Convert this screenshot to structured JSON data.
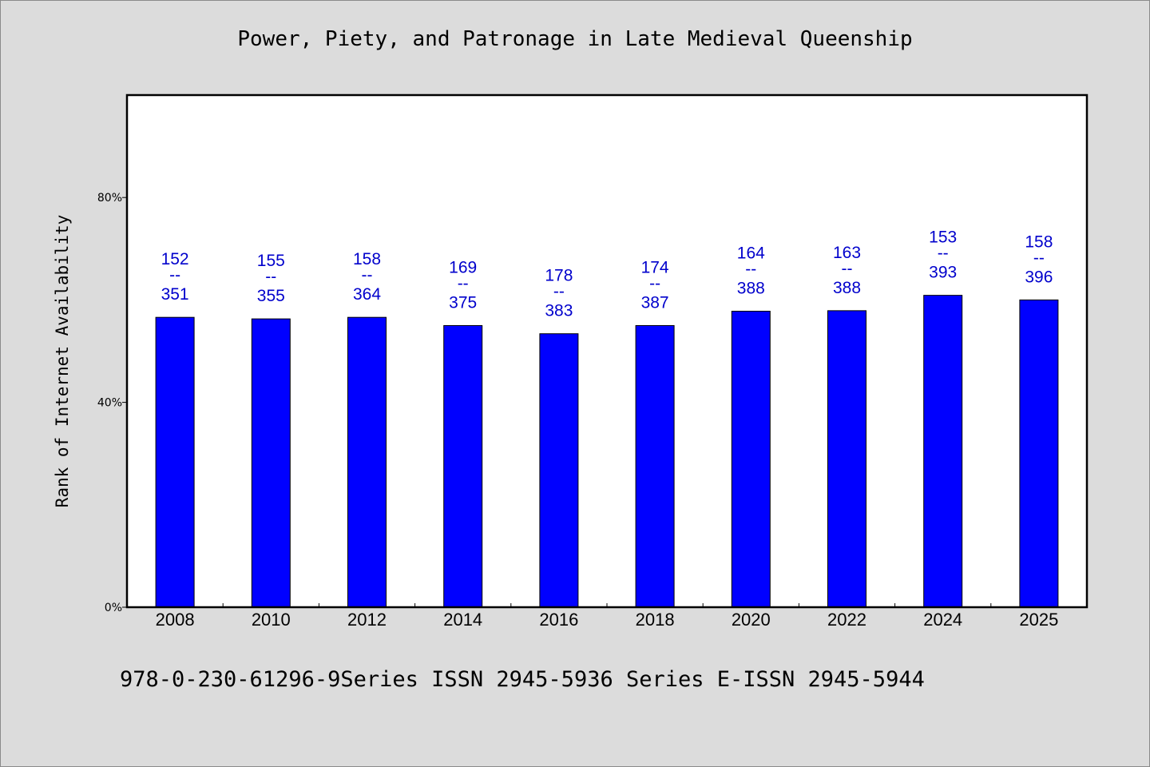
{
  "chart_data": {
    "type": "bar",
    "title": "Power, Piety, and Patronage in Late Medieval Queenship",
    "xlabel": "",
    "ylabel": "Rank of Internet Availability",
    "ylim": [
      0,
      100
    ],
    "yticks": [
      {
        "value": 0,
        "label": "0%"
      },
      {
        "value": 40,
        "label": "40%"
      },
      {
        "value": 80,
        "label": "80%"
      }
    ],
    "categories": [
      "2008",
      "2010",
      "2012",
      "2014",
      "2016",
      "2018",
      "2020",
      "2022",
      "2024",
      "2025"
    ],
    "values": [
      56.6,
      56.3,
      56.6,
      55.0,
      53.4,
      55.0,
      57.8,
      57.9,
      60.9,
      60.0
    ],
    "labels": [
      {
        "top": "152",
        "mid": "--",
        "bottom": "351"
      },
      {
        "top": "155",
        "mid": "--",
        "bottom": "355"
      },
      {
        "top": "158",
        "mid": "--",
        "bottom": "364"
      },
      {
        "top": "169",
        "mid": "--",
        "bottom": "375"
      },
      {
        "top": "178",
        "mid": "--",
        "bottom": "383"
      },
      {
        "top": "174",
        "mid": "--",
        "bottom": "387"
      },
      {
        "top": "164",
        "mid": "--",
        "bottom": "388"
      },
      {
        "top": "163",
        "mid": "--",
        "bottom": "388"
      },
      {
        "top": "153",
        "mid": "--",
        "bottom": "393"
      },
      {
        "top": "158",
        "mid": "--",
        "bottom": "396"
      }
    ],
    "bar_color": "#0000ff",
    "label_color": "#0000cc",
    "grid": false
  },
  "footer": "978-0-230-61296-9Series ISSN 2945-5936 Series E-ISSN 2945-5944"
}
